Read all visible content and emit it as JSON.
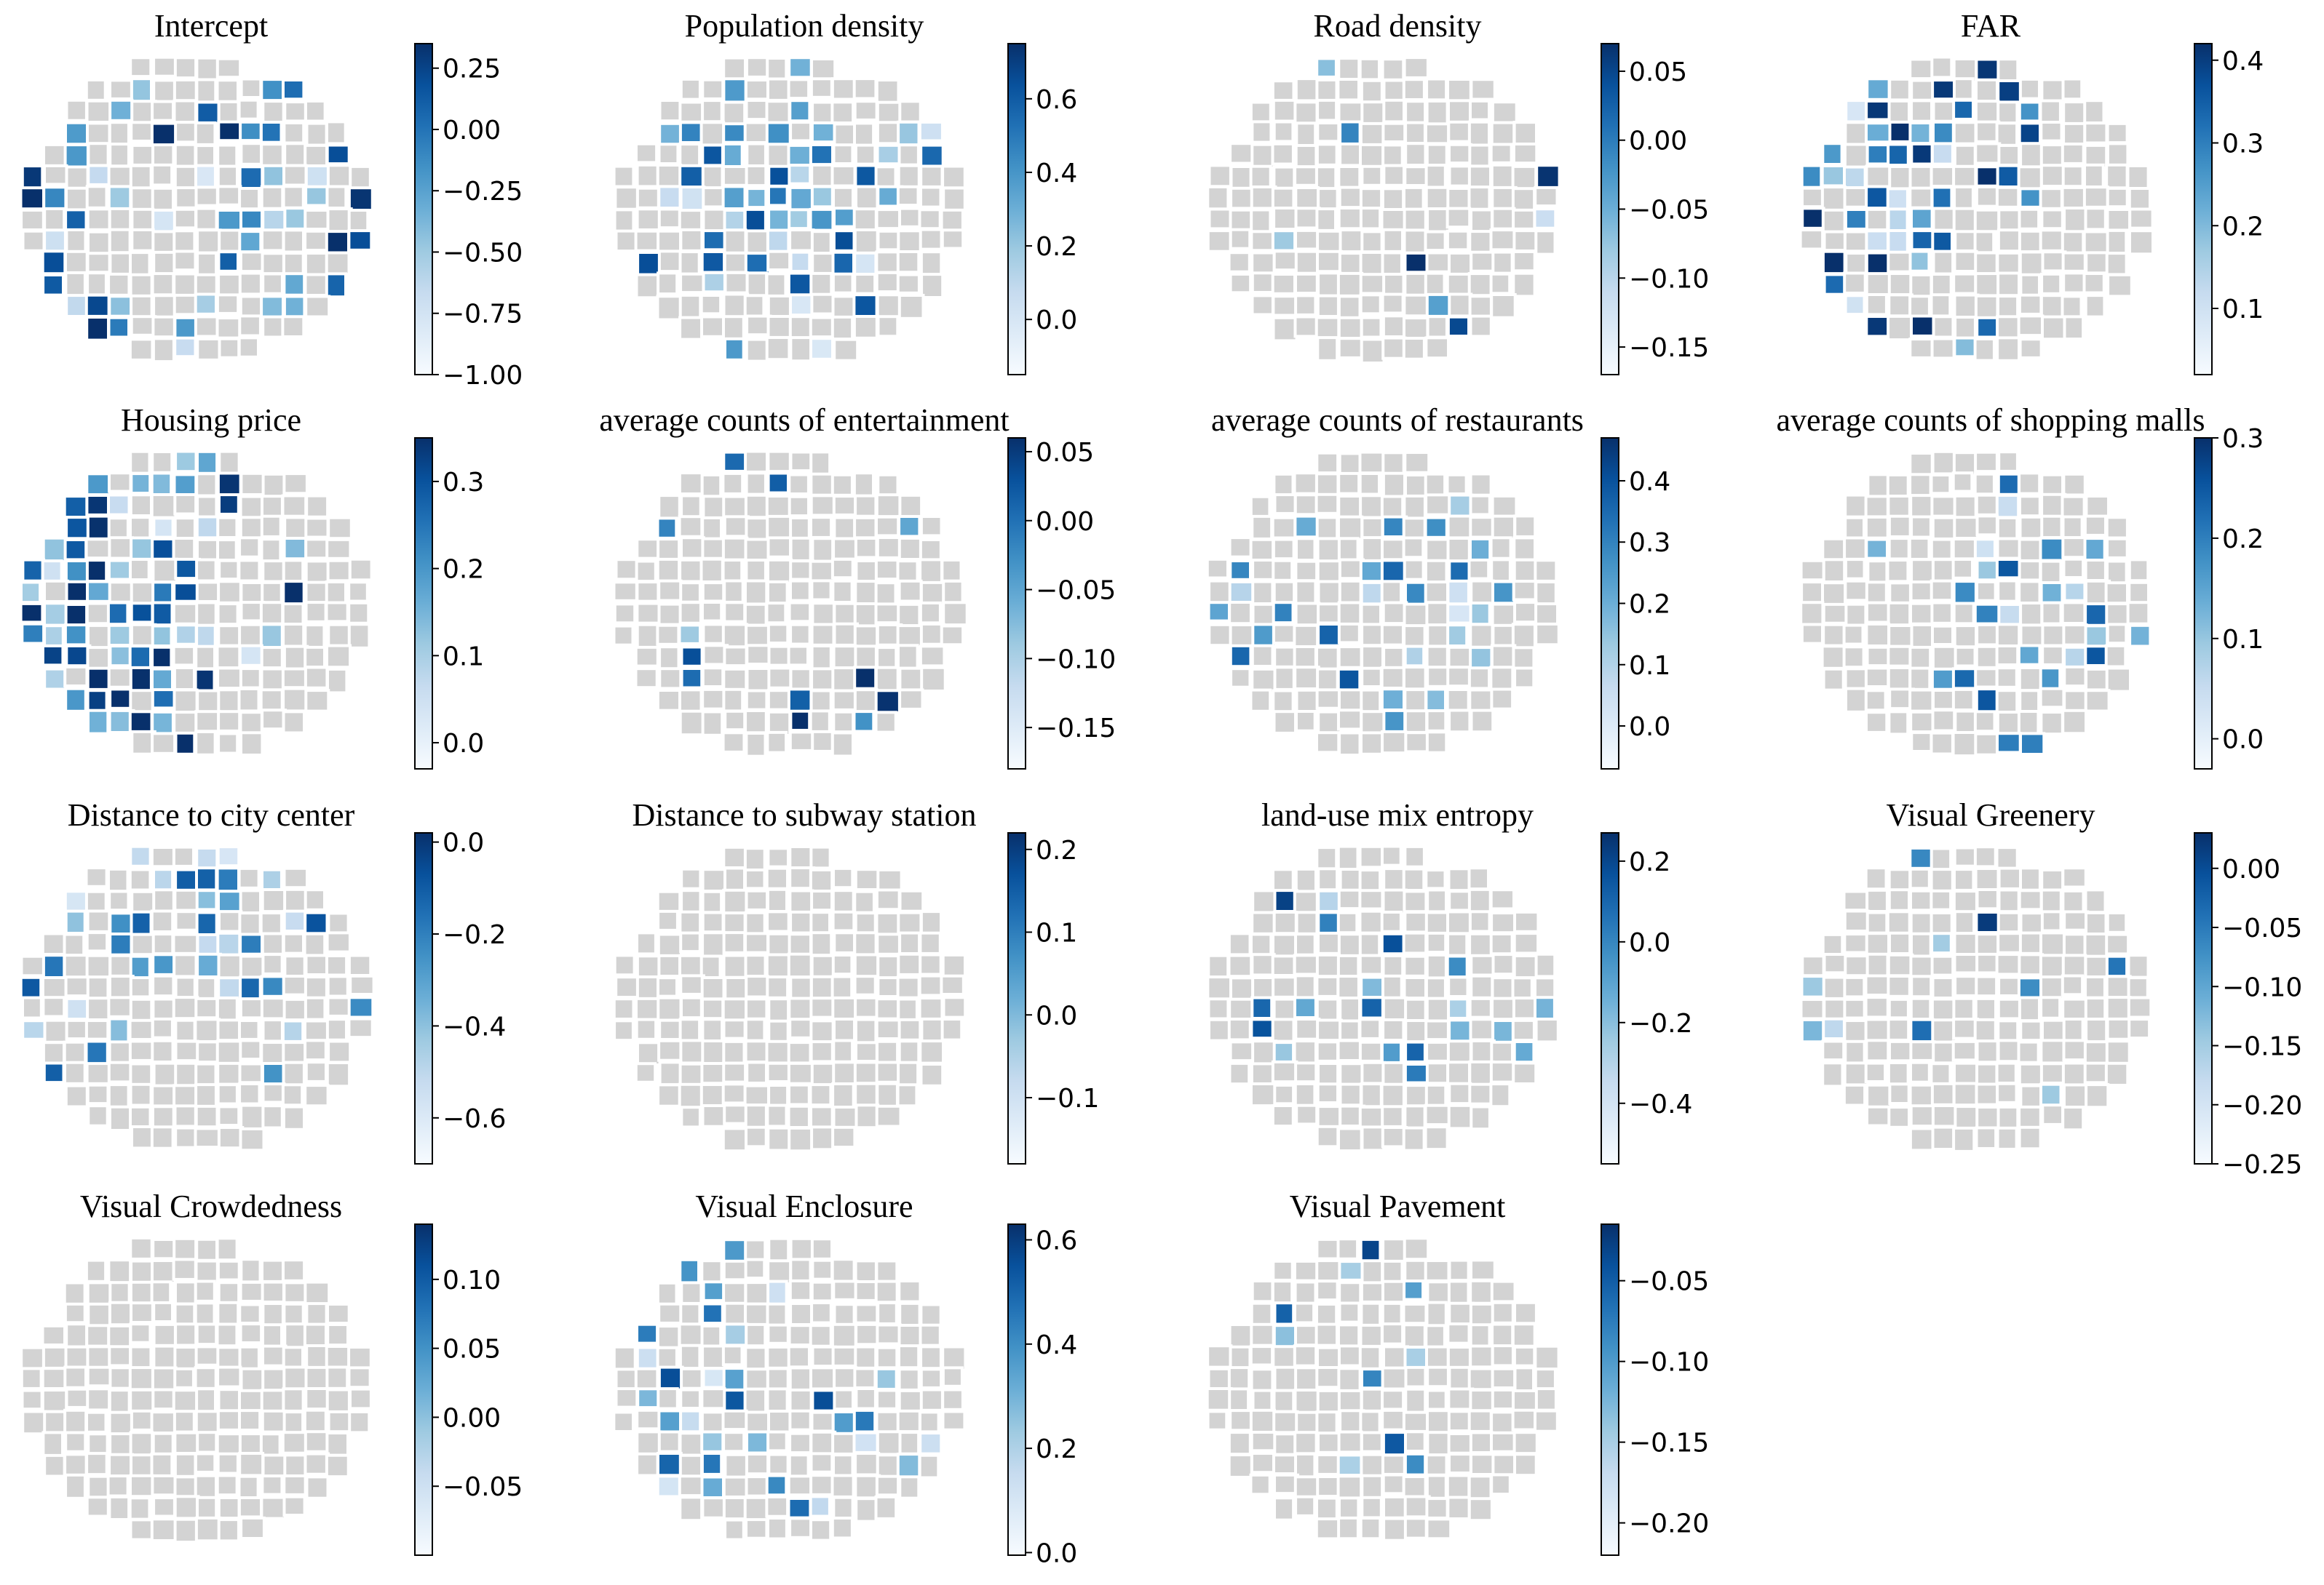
{
  "figure": {
    "panels": [
      {
        "title": "Intercept",
        "ticks": [
          "0.25",
          "0.00",
          "−0.25",
          "−0.50",
          "−0.75",
          "−1.00"
        ],
        "vmin": -1.0,
        "vmax": 0.35,
        "coverage": 0.62,
        "intensity": 0.55,
        "seed": 11,
        "bias": "left-east"
      },
      {
        "title": "Population density",
        "ticks": [
          "0.6",
          "0.4",
          "0.2",
          "0.0"
        ],
        "vmin": -0.15,
        "vmax": 0.75,
        "coverage": 0.48,
        "intensity": 0.5,
        "seed": 23,
        "bias": "center"
      },
      {
        "title": "Road density",
        "ticks": [
          "0.05",
          "0.00",
          "−0.05",
          "−0.10",
          "−0.15"
        ],
        "vmin": -0.17,
        "vmax": 0.07,
        "coverage": 0.05,
        "intensity": 0.6,
        "seed": 37,
        "bias": "none"
      },
      {
        "title": "FAR",
        "ticks": [
          "0.4",
          "0.3",
          "0.2",
          "0.1"
        ],
        "vmin": 0.02,
        "vmax": 0.42,
        "coverage": 0.58,
        "intensity": 0.6,
        "seed": 41,
        "bias": "west"
      },
      {
        "title": "Housing price",
        "ticks": [
          "0.3",
          "0.2",
          "0.1",
          "0.0"
        ],
        "vmin": -0.03,
        "vmax": 0.35,
        "coverage": 0.62,
        "intensity": 0.65,
        "seed": 53,
        "bias": "west"
      },
      {
        "title": "average counts of entertainment",
        "ticks": [
          "0.05",
          "0.00",
          "−0.05",
          "−0.10",
          "−0.15"
        ],
        "vmin": -0.18,
        "vmax": 0.06,
        "coverage": 0.06,
        "intensity": 0.55,
        "seed": 67,
        "bias": "none"
      },
      {
        "title": "average counts of restaurants",
        "ticks": [
          "0.4",
          "0.3",
          "0.2",
          "0.1",
          "0.0"
        ],
        "vmin": -0.07,
        "vmax": 0.47,
        "coverage": 0.25,
        "intensity": 0.45,
        "seed": 71,
        "bias": "center"
      },
      {
        "title": "average counts of shopping malls",
        "ticks": [
          "0.3",
          "0.2",
          "0.1",
          "0.0"
        ],
        "vmin": -0.03,
        "vmax": 0.3,
        "coverage": 0.3,
        "intensity": 0.45,
        "seed": 83,
        "bias": "east"
      },
      {
        "title": "Distance to city center",
        "ticks": [
          "0.0",
          "−0.2",
          "−0.4",
          "−0.6"
        ],
        "vmin": -0.7,
        "vmax": 0.02,
        "coverage": 0.5,
        "intensity": 0.45,
        "seed": 97,
        "bias": "north"
      },
      {
        "title": "Distance to subway station",
        "ticks": [
          "0.2",
          "0.1",
          "0.0",
          "−0.1"
        ],
        "vmin": -0.18,
        "vmax": 0.22,
        "coverage": 0.0,
        "intensity": 0.3,
        "seed": 101,
        "bias": "none"
      },
      {
        "title": "land-use mix entropy",
        "ticks": [
          "0.2",
          "0.0",
          "−0.2",
          "−0.4"
        ],
        "vmin": -0.55,
        "vmax": 0.27,
        "coverage": 0.22,
        "intensity": 0.5,
        "seed": 113,
        "bias": "center"
      },
      {
        "title": "Visual Greenery",
        "ticks": [
          "0.00",
          "−0.05",
          "−0.10",
          "−0.15",
          "−0.20",
          "−0.25"
        ],
        "vmin": -0.25,
        "vmax": 0.03,
        "coverage": 0.05,
        "intensity": 0.55,
        "seed": 127,
        "bias": "none"
      },
      {
        "title": "Visual Crowdedness",
        "ticks": [
          "0.10",
          "0.05",
          "0.00",
          "−0.05"
        ],
        "vmin": -0.1,
        "vmax": 0.14,
        "coverage": 0.0,
        "intensity": 0.3,
        "seed": 131,
        "bias": "none"
      },
      {
        "title": "Visual  Enclosure",
        "ticks": [
          "0.6",
          "0.4",
          "0.2",
          "0.0"
        ],
        "vmin": -0.005,
        "vmax": 0.63,
        "coverage": 0.3,
        "intensity": 0.5,
        "seed": 139,
        "bias": "south-west"
      },
      {
        "title": "Visual Pavement",
        "ticks": [
          "−0.05",
          "−0.10",
          "−0.15",
          "−0.20"
        ],
        "vmin": -0.22,
        "vmax": -0.015,
        "coverage": 0.07,
        "intensity": 0.5,
        "seed": 149,
        "bias": "none"
      }
    ],
    "colors": {
      "nodata": "#d3d3d3",
      "outline": "#ffffff",
      "scale": [
        "#f7fbff",
        "#deebf7",
        "#c6dbef",
        "#9ecae1",
        "#6baed6",
        "#4292c6",
        "#2171b5",
        "#08519c",
        "#08306b"
      ]
    }
  }
}
